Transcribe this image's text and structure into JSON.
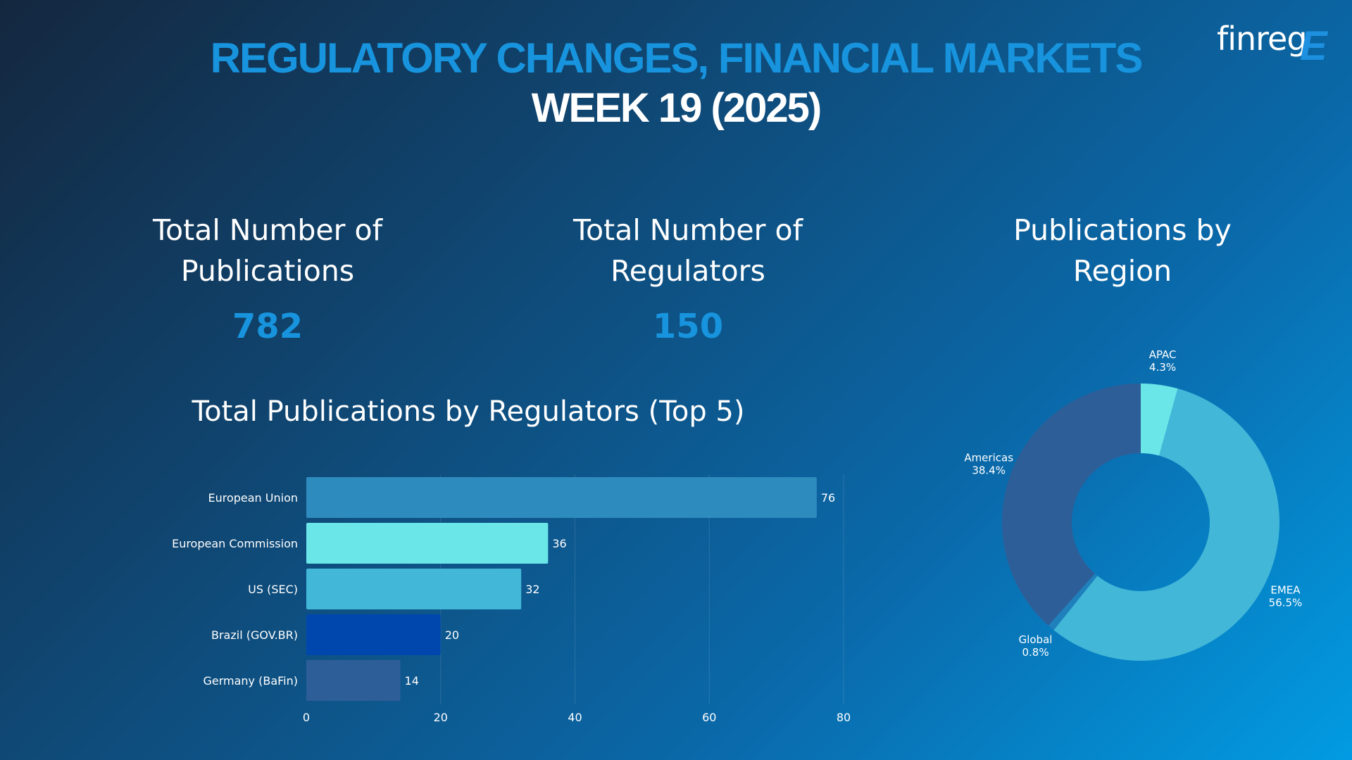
{
  "header": {
    "title": "REGULATORY CHANGES, FINANCIAL MARKETS",
    "subtitle": "WEEK 19 (2025)",
    "logo_text": "finreg",
    "logo_mark": "E"
  },
  "kpis": [
    {
      "label_line1": "Total Number of",
      "label_line2": "Publications",
      "value": "782"
    },
    {
      "label_line1": "Total Number of",
      "label_line2": "Regulators",
      "value": "150"
    }
  ],
  "region_panel": {
    "title_line1": "Publications by",
    "title_line2": "Region"
  },
  "bar_panel": {
    "title": "Total Publications by Regulators (Top 5)"
  },
  "colors": {
    "accent": "#1794dd",
    "bar_european_union": "#2e8bbe",
    "bar_european_commission": "#6ae6e8",
    "bar_us_sec": "#42b7d8",
    "bar_brazil": "#0047ad",
    "bar_germany": "#2e5e98",
    "pie_emea": "#42b7d8",
    "pie_americas": "#2e5e98",
    "pie_apac": "#6ae6e8",
    "pie_global": "#1f80bb"
  },
  "chart_data": [
    {
      "type": "bar",
      "orientation": "horizontal",
      "title": "Total Publications by Regulators (Top 5)",
      "categories": [
        "European Union",
        "European Commission",
        "US (SEC)",
        "Brazil (GOV.BR)",
        "Germany (BaFin)"
      ],
      "values": [
        76,
        36,
        32,
        20,
        14
      ],
      "xlim": [
        0,
        80
      ],
      "xticks": [
        0,
        20,
        40,
        60,
        80
      ],
      "grid": true,
      "data_labels": true
    },
    {
      "type": "pie",
      "donut": true,
      "title": "Publications by Region",
      "slices": [
        {
          "label": "APAC",
          "value": 4.3,
          "display": "4.3%"
        },
        {
          "label": "EMEA",
          "value": 56.5,
          "display": "56.5%"
        },
        {
          "label": "Global",
          "value": 0.8,
          "display": "0.8%"
        },
        {
          "label": "Americas",
          "value": 38.4,
          "display": "38.4%"
        }
      ]
    }
  ]
}
